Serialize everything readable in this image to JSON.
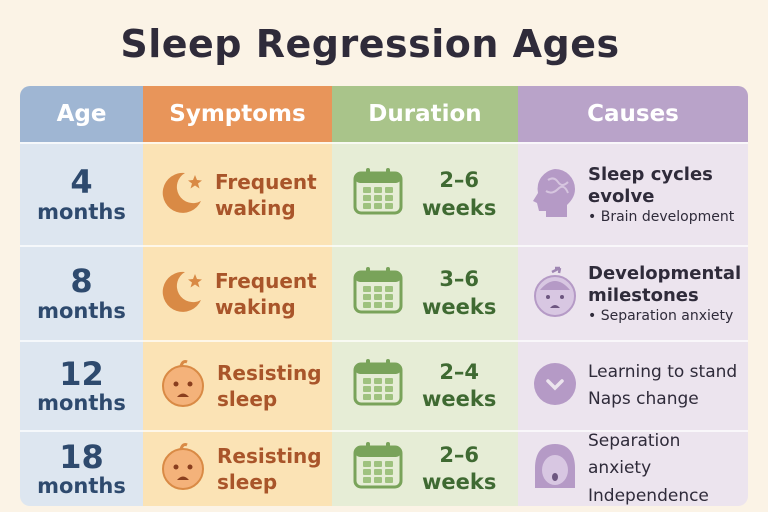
{
  "title": "Sleep Regression Ages",
  "headers": [
    "Age",
    "Symptoms",
    "Duration",
    "Causes"
  ],
  "header_colors": {
    "age": "#9fb6d3",
    "symptoms": "#e8955a",
    "duration": "#a9c48a",
    "causes": "#b9a3c9"
  },
  "rows": [
    {
      "age": "4",
      "unit": "months",
      "symptom": [
        "Frequent",
        "waking"
      ],
      "symptom_icon": "moon-star-icon",
      "duration": [
        "2–6",
        "weeks"
      ],
      "cause_icon": "brain-head-icon",
      "cause": [
        "Sleep cycles",
        "evolve"
      ],
      "cause_note": "• Brain development"
    },
    {
      "age": "8",
      "unit": "months",
      "symptom": [
        "Frequent",
        "waking"
      ],
      "symptom_icon": "moon-star-icon",
      "duration": [
        "3–6",
        "weeks"
      ],
      "cause_icon": "baby-face-icon",
      "cause": [
        "Developmental",
        "milestones"
      ],
      "cause_note": "• Separation anxiety"
    },
    {
      "age": "12",
      "unit": "months",
      "symptom": [
        "Resisting",
        "sleep"
      ],
      "symptom_icon": "fussy-baby-icon",
      "duration": [
        "2–4",
        "weeks"
      ],
      "cause_icon": "chevron-circle-icon",
      "cause": [
        "Learning to stand",
        "Naps change"
      ],
      "cause_note": ""
    },
    {
      "age": "18",
      "unit": "months",
      "symptom": [
        "Resisting",
        "sleep"
      ],
      "symptom_icon": "fussy-baby-icon",
      "duration": [
        "2–6",
        "weeks"
      ],
      "cause_icon": "toddler-icon",
      "cause": [
        "Separation anxiety",
        "Independence"
      ],
      "cause_note": ""
    }
  ]
}
